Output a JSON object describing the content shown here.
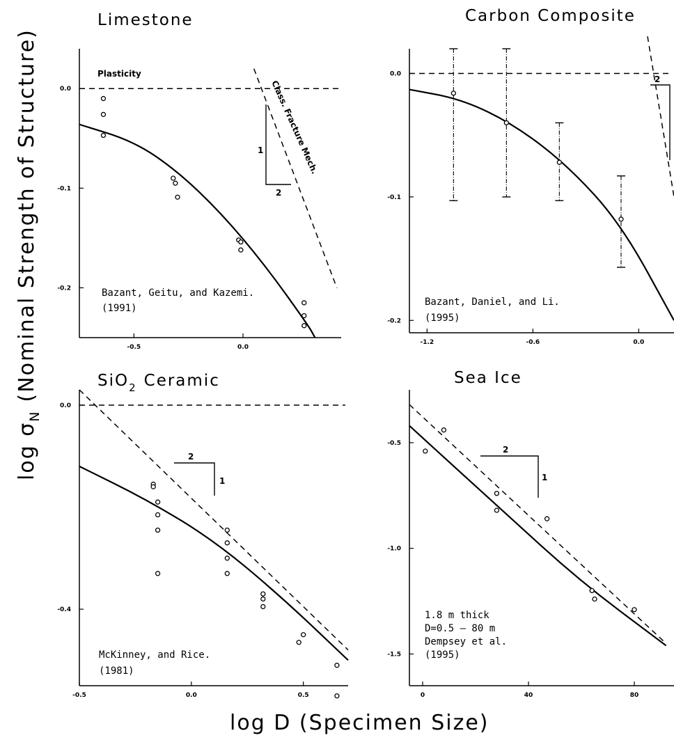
{
  "ylabel": "log σ",
  "ylabel_sub": "N",
  "ylabel_rest": "(Nominal Strength of Structure)",
  "xlabel": "log D (Specimen Size)",
  "chart_data": [
    {
      "type": "scatter",
      "title": "Limestone",
      "xlim": [
        -0.75,
        0.45
      ],
      "ylim": [
        -0.25,
        0.04
      ],
      "xticks": [
        "-0.5",
        "0.0"
      ],
      "yticks": [
        "0.0",
        "-0.1",
        "-0.2"
      ],
      "points": [
        [
          -0.64,
          -0.01
        ],
        [
          -0.64,
          -0.026
        ],
        [
          -0.64,
          -0.047
        ],
        [
          -0.32,
          -0.09
        ],
        [
          -0.31,
          -0.095
        ],
        [
          -0.3,
          -0.109
        ],
        [
          -0.02,
          -0.152
        ],
        [
          -0.01,
          -0.154
        ],
        [
          -0.01,
          -0.162
        ],
        [
          0.28,
          -0.215
        ],
        [
          0.28,
          -0.228
        ],
        [
          0.28,
          -0.238
        ]
      ],
      "fit_curve": [
        [
          -0.75,
          -0.036
        ],
        [
          -0.5,
          -0.053
        ],
        [
          -0.3,
          -0.083
        ],
        [
          -0.1,
          -0.125
        ],
        [
          0.1,
          -0.177
        ],
        [
          0.3,
          -0.238
        ],
        [
          0.33,
          -0.25
        ]
      ],
      "asymptote_plasticity": 0.0,
      "asymptote_lefm": [
        [
          0.05,
          0.02
        ],
        [
          0.43,
          -0.2
        ]
      ],
      "annotations": [
        "Plasticity",
        "Class. Fracture Mech.",
        "1",
        "2"
      ],
      "source": "Bazant, Geitu, and Kazemi.",
      "source_year": "(1991)"
    },
    {
      "type": "scatter",
      "title": "Carbon Composite",
      "xlim": [
        -1.3,
        0.2
      ],
      "ylim": [
        -0.21,
        0.02
      ],
      "xticks": [
        "-1.2",
        "-0.6",
        "0.0"
      ],
      "yticks": [
        "0.0",
        "-0.1",
        "-0.2"
      ],
      "points": [
        [
          -1.05,
          -0.016
        ],
        [
          -0.75,
          -0.04
        ],
        [
          -0.45,
          -0.072
        ],
        [
          -0.1,
          -0.118
        ]
      ],
      "error_bars": [
        [
          -1.05,
          0.02,
          -0.103
        ],
        [
          -0.75,
          0.02,
          -0.1
        ],
        [
          -0.45,
          -0.04,
          -0.103
        ],
        [
          -0.1,
          -0.083,
          -0.157
        ]
      ],
      "fit_curve": [
        [
          -1.3,
          -0.013
        ],
        [
          -1.0,
          -0.021
        ],
        [
          -0.7,
          -0.042
        ],
        [
          -0.4,
          -0.075
        ],
        [
          -0.1,
          -0.122
        ],
        [
          0.2,
          -0.2
        ]
      ],
      "asymptote_plasticity": 0.0,
      "asymptote_lefm": [
        [
          0.05,
          0.03
        ],
        [
          0.2,
          -0.1
        ]
      ],
      "annotations": [
        "2"
      ],
      "source": "Bazant, Daniel, and Li.",
      "source_year": "(1995)"
    },
    {
      "type": "scatter",
      "title": "SiO",
      "title_sub": "2",
      "title_rest": "Ceramic",
      "xlim": [
        -0.5,
        0.7
      ],
      "ylim": [
        -0.55,
        0.03
      ],
      "xticks": [
        "-0.5",
        "0.0",
        "0.5"
      ],
      "yticks": [
        "0.0",
        "-0.4"
      ],
      "points": [
        [
          -0.17,
          -0.155
        ],
        [
          -0.17,
          -0.16
        ],
        [
          -0.15,
          -0.19
        ],
        [
          -0.15,
          -0.215
        ],
        [
          -0.15,
          -0.245
        ],
        [
          -0.15,
          -0.33
        ],
        [
          0.16,
          -0.245
        ],
        [
          0.16,
          -0.27
        ],
        [
          0.16,
          -0.3
        ],
        [
          0.16,
          -0.33
        ],
        [
          0.32,
          -0.37
        ],
        [
          0.32,
          -0.38
        ],
        [
          0.32,
          -0.395
        ],
        [
          0.48,
          -0.465
        ],
        [
          0.5,
          -0.45
        ],
        [
          0.65,
          -0.51
        ],
        [
          0.65,
          -0.57
        ]
      ],
      "fit_curve": [
        [
          -0.5,
          -0.12
        ],
        [
          -0.2,
          -0.185
        ],
        [
          0.1,
          -0.265
        ],
        [
          0.4,
          -0.375
        ],
        [
          0.7,
          -0.5
        ]
      ],
      "asymptote_plasticity": 0.0,
      "asymptote_lefm": [
        [
          -0.5,
          0.03
        ],
        [
          0.7,
          -0.48
        ]
      ],
      "annotations": [
        "2",
        "1"
      ],
      "source": "McKinney, and Rice.",
      "source_year": "(1981)"
    },
    {
      "type": "scatter",
      "title": "Sea Ice",
      "xlim": [
        -5,
        95
      ],
      "ylim": [
        -1.65,
        -0.25
      ],
      "xticks": [
        "0",
        "40",
        "80"
      ],
      "yticks": [
        "-0.5",
        "-1.0",
        "-1.5"
      ],
      "points": [
        [
          1,
          -0.54
        ],
        [
          8,
          -0.44
        ],
        [
          28,
          -0.74
        ],
        [
          28,
          -0.82
        ],
        [
          47,
          -0.86
        ],
        [
          64,
          -1.2
        ],
        [
          65,
          -1.24
        ],
        [
          80,
          -1.29
        ]
      ],
      "fit_curve": [
        [
          -5,
          -0.42
        ],
        [
          30,
          -0.82
        ],
        [
          60,
          -1.16
        ],
        [
          92,
          -1.46
        ]
      ],
      "asymptote_lefm": [
        [
          -5,
          -0.32
        ],
        [
          92,
          -1.45
        ]
      ],
      "annotations": [
        "2",
        "1"
      ],
      "note_lines": [
        "1.8 m thick",
        "D=0.5 — 80 m",
        "Dempsey et al.",
        "(1995)"
      ]
    }
  ]
}
